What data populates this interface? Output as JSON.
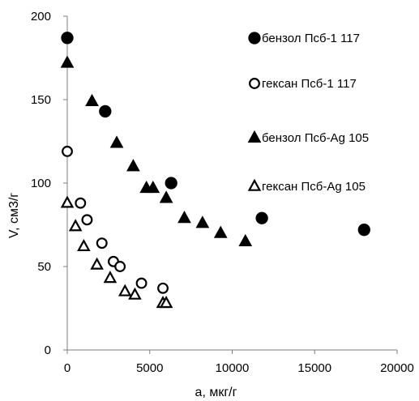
{
  "chart_data": {
    "type": "scatter",
    "xlabel": "a, мкг/г",
    "ylabel": "V, см3/г",
    "xlim": [
      0,
      20000
    ],
    "ylim": [
      0,
      200
    ],
    "x_ticks": [
      "0",
      "5000",
      "10000",
      "15000",
      "20000"
    ],
    "y_ticks": [
      "0",
      "50",
      "100",
      "150",
      "200"
    ],
    "grid": false,
    "legend_position": "right",
    "series": [
      {
        "name": "бензол Псб-1  117",
        "marker": "circle-filled",
        "color": "#000000",
        "points": [
          [
            0,
            187
          ],
          [
            2300,
            143
          ],
          [
            6300,
            100
          ],
          [
            11800,
            79
          ],
          [
            18000,
            72
          ]
        ]
      },
      {
        "name": "гексан Псб-1  117",
        "marker": "circle-open",
        "color": "#000000",
        "points": [
          [
            0,
            119
          ],
          [
            800,
            88
          ],
          [
            1200,
            78
          ],
          [
            2100,
            64
          ],
          [
            2800,
            53
          ],
          [
            3200,
            50
          ],
          [
            4500,
            40
          ],
          [
            5800,
            37
          ]
        ]
      },
      {
        "name": "бензол Псб-Ag 105",
        "marker": "triangle-filled",
        "color": "#000000",
        "points": [
          [
            0,
            172
          ],
          [
            1500,
            149
          ],
          [
            3000,
            124
          ],
          [
            4000,
            110
          ],
          [
            4800,
            97
          ],
          [
            5200,
            97
          ],
          [
            6000,
            91
          ],
          [
            7100,
            79
          ],
          [
            8200,
            76
          ],
          [
            9300,
            70
          ],
          [
            10800,
            65
          ]
        ]
      },
      {
        "name": "гексан Псб-Ag 105",
        "marker": "triangle-open",
        "color": "#000000",
        "points": [
          [
            0,
            88
          ],
          [
            500,
            74
          ],
          [
            1000,
            62
          ],
          [
            1800,
            51
          ],
          [
            2600,
            43
          ],
          [
            3500,
            35
          ],
          [
            4100,
            33
          ],
          [
            5800,
            28
          ],
          [
            6000,
            28
          ]
        ]
      }
    ]
  }
}
